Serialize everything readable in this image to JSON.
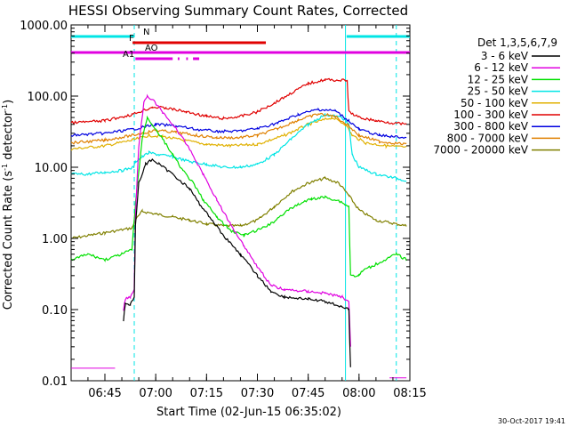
{
  "chart_data": {
    "type": "line",
    "title": "HESSI Observing Summary Count Rates, Corrected",
    "xlabel": "Start Time (02-Jun-15 06:35:02)",
    "ylabel": "Corrected Count Rate (s⁻¹ detector⁻¹)",
    "ylabel_main": "Corrected Count Rate (s",
    "ylabel_exp1": "-1",
    "ylabel_mid": " detector",
    "ylabel_exp2": "-1",
    "ylabel_close": ")",
    "footer": "30-Oct-2017 19:41",
    "y_scale": "log",
    "ylim": [
      0.01,
      1000
    ],
    "xlim": [
      "06:35:02",
      "08:15:00"
    ],
    "x_ticks": [
      "06:45",
      "07:00",
      "07:15",
      "07:30",
      "07:45",
      "08:00",
      "08:15"
    ],
    "y_ticks": [
      "1000.00",
      "100.00",
      "10.00",
      "1.00",
      "0.10",
      "0.01"
    ],
    "legend_title": "Det 1,3,5,6,7,9",
    "legend_position": "right",
    "grid": false,
    "flags": [
      {
        "label": "N",
        "color": "#00e5e5",
        "segments": [
          [
            "06:35:02",
            "06:53:40"
          ],
          [
            "07:56:20",
            "08:15:00"
          ]
        ]
      },
      {
        "label": "F",
        "color": "#e00000",
        "segments": [
          [
            "06:53:10",
            "07:32:30"
          ]
        ]
      },
      {
        "label": "AO",
        "color": "#e000e0",
        "segments": [
          [
            "06:35:02",
            "08:15:00"
          ]
        ]
      },
      {
        "label": "A1",
        "color": "#e000e0",
        "segments": [
          [
            "06:54:00",
            "07:05:00"
          ],
          [
            "07:06:30",
            "07:07:00"
          ],
          [
            "07:09:00",
            "07:09:30"
          ],
          [
            "07:11:00",
            "07:12:50"
          ]
        ]
      }
    ],
    "vlines": [
      {
        "time": "06:53:40",
        "color": "#00e5e5",
        "style": "dashed"
      },
      {
        "time": "07:56:00",
        "color": "#00e5e5",
        "style": "solid"
      },
      {
        "time": "08:11:00",
        "color": "#00e5e5",
        "style": "dashed"
      }
    ],
    "series": [
      {
        "name": "3 - 6 keV",
        "color": "#000000",
        "points": [
          [
            "06:50:30",
            0.07
          ],
          [
            "06:51:00",
            0.12
          ],
          [
            "06:52:30",
            0.12
          ],
          [
            "06:53:40",
            0.15
          ],
          [
            "06:54:00",
            1.5
          ],
          [
            "06:55:00",
            6
          ],
          [
            "06:57:00",
            11
          ],
          [
            "06:59:00",
            13
          ],
          [
            "07:01:00",
            11
          ],
          [
            "07:05:00",
            8
          ],
          [
            "07:10:00",
            5
          ],
          [
            "07:13:00",
            3
          ],
          [
            "07:16:00",
            2
          ],
          [
            "07:20:00",
            1.1
          ],
          [
            "07:25:00",
            0.6
          ],
          [
            "07:30:00",
            0.3
          ],
          [
            "07:34:00",
            0.18
          ],
          [
            "07:38:00",
            0.15
          ],
          [
            "07:45:00",
            0.14
          ],
          [
            "07:50:00",
            0.13
          ],
          [
            "07:55:00",
            0.11
          ],
          [
            "07:57:00",
            0.1
          ],
          [
            "07:57:30",
            0.015
          ]
        ]
      },
      {
        "name": "6 - 12 keV",
        "color": "#e000e0",
        "points": [
          [
            "06:50:30",
            0.1
          ],
          [
            "06:51:00",
            0.14
          ],
          [
            "06:52:30",
            0.15
          ],
          [
            "06:53:40",
            0.2
          ],
          [
            "06:54:00",
            2
          ],
          [
            "06:55:00",
            20
          ],
          [
            "06:56:30",
            80
          ],
          [
            "06:57:30",
            100
          ],
          [
            "06:59:00",
            90
          ],
          [
            "07:02:00",
            60
          ],
          [
            "07:06:00",
            35
          ],
          [
            "07:10:00",
            18
          ],
          [
            "07:14:00",
            8
          ],
          [
            "07:18:00",
            3.5
          ],
          [
            "07:22:00",
            1.6
          ],
          [
            "07:26:00",
            0.8
          ],
          [
            "07:30:00",
            0.4
          ],
          [
            "07:34:00",
            0.22
          ],
          [
            "07:38:00",
            0.19
          ],
          [
            "07:45:00",
            0.18
          ],
          [
            "07:50:00",
            0.17
          ],
          [
            "07:55:00",
            0.15
          ],
          [
            "07:57:00",
            0.13
          ],
          [
            "07:57:30",
            0.03
          ]
        ]
      },
      {
        "name": "12 - 25 keV",
        "color": "#00e000",
        "points": [
          [
            "06:35:02",
            0.5
          ],
          [
            "06:40:00",
            0.6
          ],
          [
            "06:45:00",
            0.5
          ],
          [
            "06:50:00",
            0.6
          ],
          [
            "06:53:00",
            0.7
          ],
          [
            "06:54:00",
            3
          ],
          [
            "06:56:00",
            25
          ],
          [
            "06:57:30",
            50
          ],
          [
            "06:59:00",
            40
          ],
          [
            "07:02:00",
            25
          ],
          [
            "07:05:00",
            15
          ],
          [
            "07:08:00",
            9
          ],
          [
            "07:11:00",
            6
          ],
          [
            "07:14:00",
            3.5
          ],
          [
            "07:18:00",
            2
          ],
          [
            "07:22:00",
            1.3
          ],
          [
            "07:26:00",
            1.1
          ],
          [
            "07:30:00",
            1.3
          ],
          [
            "07:34:00",
            1.6
          ],
          [
            "07:38:00",
            2.3
          ],
          [
            "07:42:00",
            3
          ],
          [
            "07:46:00",
            3.6
          ],
          [
            "07:50:00",
            3.8
          ],
          [
            "07:54:00",
            3.4
          ],
          [
            "07:57:00",
            2.8
          ],
          [
            "07:57:30",
            0.3
          ],
          [
            "08:00:00",
            0.3
          ],
          [
            "08:01:00",
            0.35
          ],
          [
            "08:11:00",
            0.6
          ],
          [
            "08:14:00",
            0.5
          ]
        ]
      },
      {
        "name": "25 - 50 keV",
        "color": "#00e5e5",
        "points": [
          [
            "06:35:02",
            8
          ],
          [
            "06:40:00",
            8
          ],
          [
            "06:45:00",
            8.5
          ],
          [
            "06:50:00",
            9
          ],
          [
            "06:53:30",
            10
          ],
          [
            "06:54:00",
            12
          ],
          [
            "06:56:00",
            14
          ],
          [
            "06:58:00",
            16
          ],
          [
            "07:01:00",
            15
          ],
          [
            "07:05:00",
            14
          ],
          [
            "07:10:00",
            12
          ],
          [
            "07:15:00",
            11
          ],
          [
            "07:20:00",
            10
          ],
          [
            "07:25:00",
            10
          ],
          [
            "07:30:00",
            11
          ],
          [
            "07:35:00",
            15
          ],
          [
            "07:40:00",
            25
          ],
          [
            "07:45:00",
            40
          ],
          [
            "07:50:00",
            55
          ],
          [
            "07:55:00",
            50
          ],
          [
            "07:57:00",
            40
          ],
          [
            "07:58:00",
            15
          ],
          [
            "08:00:00",
            10
          ],
          [
            "08:05:00",
            8
          ],
          [
            "08:11:00",
            7
          ],
          [
            "08:14:00",
            6.5
          ]
        ]
      },
      {
        "name": "50 - 100 keV",
        "color": "#e0b000",
        "points": [
          [
            "06:35:02",
            18
          ],
          [
            "06:45:00",
            20
          ],
          [
            "06:53:00",
            24
          ],
          [
            "06:58:00",
            28
          ],
          [
            "07:02:00",
            27
          ],
          [
            "07:08:00",
            24
          ],
          [
            "07:15:00",
            21
          ],
          [
            "07:22:00",
            20
          ],
          [
            "07:30:00",
            21
          ],
          [
            "07:38:00",
            28
          ],
          [
            "07:45:00",
            40
          ],
          [
            "07:52:00",
            50
          ],
          [
            "07:56:00",
            40
          ],
          [
            "07:58:00",
            28
          ],
          [
            "08:02:00",
            22
          ],
          [
            "08:08:00",
            20
          ],
          [
            "08:14:00",
            19
          ]
        ]
      },
      {
        "name": "100 - 300 keV",
        "color": "#e00000",
        "points": [
          [
            "06:35:02",
            42
          ],
          [
            "06:45:00",
            45
          ],
          [
            "06:53:00",
            55
          ],
          [
            "06:59:00",
            70
          ],
          [
            "07:03:00",
            68
          ],
          [
            "07:09:00",
            60
          ],
          [
            "07:15:00",
            52
          ],
          [
            "07:20:00",
            48
          ],
          [
            "07:25:00",
            52
          ],
          [
            "07:30:00",
            60
          ],
          [
            "07:35:00",
            80
          ],
          [
            "07:40:00",
            110
          ],
          [
            "07:45:00",
            150
          ],
          [
            "07:50:00",
            170
          ],
          [
            "07:56:30",
            165
          ],
          [
            "07:57:00",
            60
          ],
          [
            "08:00:00",
            50
          ],
          [
            "08:05:00",
            45
          ],
          [
            "08:10:00",
            42
          ],
          [
            "08:14:00",
            40
          ]
        ]
      },
      {
        "name": "300 - 800 keV",
        "color": "#0000e0",
        "points": [
          [
            "06:35:02",
            28
          ],
          [
            "06:45:00",
            30
          ],
          [
            "06:53:00",
            34
          ],
          [
            "07:00:00",
            40
          ],
          [
            "07:06:00",
            38
          ],
          [
            "07:12:00",
            34
          ],
          [
            "07:18:00",
            32
          ],
          [
            "07:24:00",
            32
          ],
          [
            "07:30:00",
            35
          ],
          [
            "07:36:00",
            42
          ],
          [
            "07:42:00",
            55
          ],
          [
            "07:48:00",
            65
          ],
          [
            "07:53:00",
            62
          ],
          [
            "07:57:00",
            45
          ],
          [
            "08:00:00",
            34
          ],
          [
            "08:06:00",
            28
          ],
          [
            "08:14:00",
            26
          ]
        ]
      },
      {
        "name": "800 - 7000 keV",
        "color": "#e08000",
        "points": [
          [
            "06:35:02",
            22
          ],
          [
            "06:45:00",
            24
          ],
          [
            "06:53:00",
            28
          ],
          [
            "07:00:00",
            33
          ],
          [
            "07:06:00",
            31
          ],
          [
            "07:12:00",
            28
          ],
          [
            "07:18:00",
            26
          ],
          [
            "07:24:00",
            26
          ],
          [
            "07:30:00",
            28
          ],
          [
            "07:36:00",
            35
          ],
          [
            "07:42:00",
            46
          ],
          [
            "07:48:00",
            56
          ],
          [
            "07:53:00",
            52
          ],
          [
            "07:57:00",
            38
          ],
          [
            "08:00:00",
            28
          ],
          [
            "08:06:00",
            23
          ],
          [
            "08:14:00",
            21
          ]
        ]
      },
      {
        "name": "7000 - 20000 keV",
        "color": "#808000",
        "points": [
          [
            "06:35:02",
            1
          ],
          [
            "06:45:00",
            1.2
          ],
          [
            "06:53:00",
            1.4
          ],
          [
            "06:54:00",
            1.8
          ],
          [
            "06:56:00",
            2.4
          ],
          [
            "07:00:00",
            2.2
          ],
          [
            "07:05:00",
            2
          ],
          [
            "07:10:00",
            1.8
          ],
          [
            "07:15:00",
            1.6
          ],
          [
            "07:20:00",
            1.5
          ],
          [
            "07:25:00",
            1.5
          ],
          [
            "07:30:00",
            1.8
          ],
          [
            "07:35:00",
            2.8
          ],
          [
            "07:40:00",
            4.5
          ],
          [
            "07:45:00",
            6
          ],
          [
            "07:50:00",
            7
          ],
          [
            "07:54:00",
            6
          ],
          [
            "07:57:00",
            4
          ],
          [
            "08:00:00",
            2.5
          ],
          [
            "08:05:00",
            1.8
          ],
          [
            "08:11:00",
            1.6
          ],
          [
            "08:14:00",
            1.5
          ]
        ]
      }
    ],
    "background_intervals": [
      {
        "color": "#e000e0",
        "segments": [
          [
            "06:35:02",
            "06:48:00",
            0.015
          ],
          [
            "08:09:00",
            "08:14:00",
            0.011
          ]
        ]
      }
    ]
  }
}
